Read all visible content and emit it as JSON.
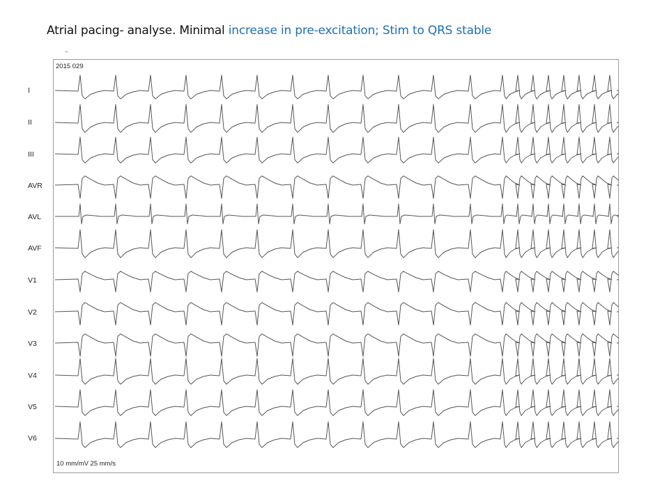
{
  "title": {
    "prefix": "Atrial pacing- analyse. Minimal ",
    "highlight": "increase in pre-excitation; Stim to QRS stable",
    "highlight_color": "#1f6fb5"
  },
  "ecg": {
    "record_id": "2015 029",
    "calibration": "10 mm/mV   25 mm/s",
    "trace_color": "#555555",
    "leads": [
      "I",
      "II",
      "III",
      "AVR",
      "AVL",
      "AVF",
      "V1",
      "V2",
      "V3",
      "V4",
      "V5",
      "V6"
    ]
  }
}
